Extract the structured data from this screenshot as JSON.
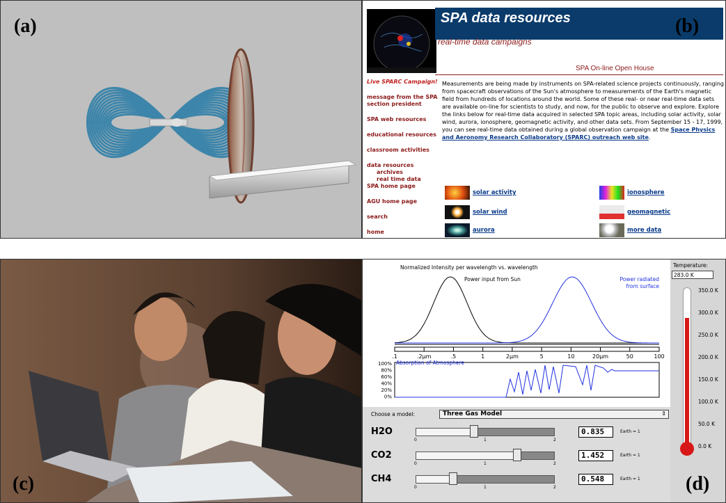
{
  "labels": {
    "a": "(a)",
    "b": "(b)",
    "c": "(c)",
    "d": "(d)"
  },
  "panel_b": {
    "title": "SPA data resources",
    "subtitle": "real-time data campaigns",
    "open_house": "SPA On-line Open House",
    "nav": [
      {
        "label": "Live SPARC Campaign!",
        "kind": "live"
      },
      {
        "label": "message from the SPA section president",
        "kind": "item"
      },
      {
        "label": "SPA web resources",
        "kind": "item"
      },
      {
        "label": "educational resources",
        "kind": "item"
      },
      {
        "label": "classroom activities",
        "kind": "item"
      },
      {
        "label": "data resources",
        "kind": "item"
      },
      {
        "label": "archives",
        "kind": "sub"
      },
      {
        "label": "real time data",
        "kind": "sub"
      },
      {
        "label": "SPA home page",
        "kind": "item"
      },
      {
        "label": "AGU home page",
        "kind": "item"
      },
      {
        "label": "search",
        "kind": "item"
      },
      {
        "label": "home",
        "kind": "item"
      }
    ],
    "body_text": "Measurements are being made by instruments on SPA-related science projects continuously, ranging from spacecraft observations of the Sun's atmosphere to measurements of the Earth's magnetic field from hundreds of locations around the world. Some of these real- or near real-time data sets are available on-line for scientists to study, and now, for the public to observe and explore. Explore the links below for real-time data acquired in selected SPA topic areas, including solar activity, solar wind, aurora, ionosphere, geomagnetic activity, and other data sets. From September 15 - 17, 1999, you can see real-time data obtained during a global observation campaign at the ",
    "body_link": "Space Physics and Aeronomy Research Collaboratory (SPARC) outreach web site",
    "body_end": ".",
    "topics": [
      "solar activity",
      "ionosphere",
      "solar wind",
      "geomagnetic",
      "aurora",
      "more data"
    ]
  },
  "panel_d": {
    "graph_title": "Normalized Intensity per wavelength vs. wavelength",
    "sun_label": "Power input from Sun",
    "surface_label_1": "Power radiated",
    "surface_label_2": "from surface",
    "x_ticks": [
      ".1",
      ".2μm",
      ".5",
      "1",
      "2μm",
      "5",
      "10",
      "20μm",
      "50",
      "100"
    ],
    "absorption_label": "Absorption of Atmosphere",
    "absorption_ticks": [
      "100%",
      "80%",
      "60%",
      "40%",
      "20%",
      "0%"
    ],
    "choose_label": "Choose a model:",
    "model": "Three Gas Model",
    "gases": [
      {
        "name": "H2O",
        "value": "0.835",
        "fraction": 0.42
      },
      {
        "name": "CO2",
        "value": "1.452",
        "fraction": 0.73
      },
      {
        "name": "CH4",
        "value": "0.548",
        "fraction": 0.27
      }
    ],
    "slider_nums": [
      "0",
      "1",
      "2"
    ],
    "earth_label": "Earth = 1",
    "thermo": {
      "title": "Temperature:",
      "reading": "283.0 K",
      "scale": [
        "350.0 K",
        "300.0 K",
        "250.0 K",
        "200.0 K",
        "150.0 K",
        "100.0 K",
        "50.0 K",
        "0.0 K"
      ],
      "level_fraction": 0.81
    }
  }
}
